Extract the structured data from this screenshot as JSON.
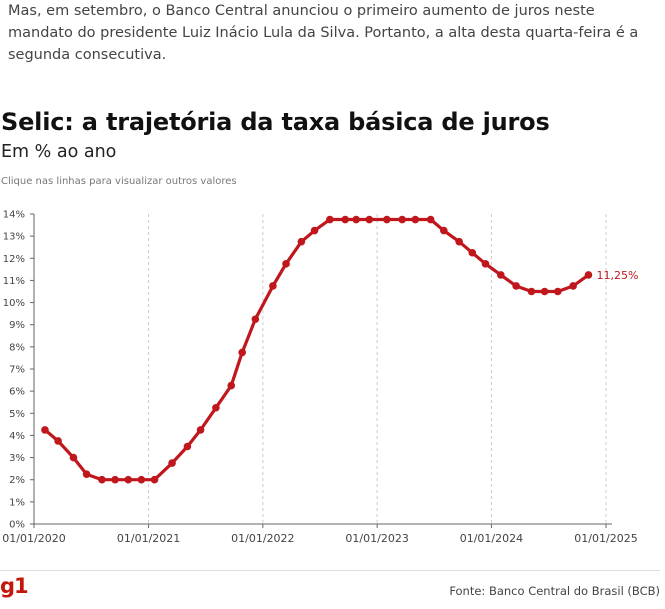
{
  "intro_text": "Mas, em setembro, o Banco Central anunciou o primeiro aumento de juros neste mandato do presidente Luiz Inácio Lula da Silva. Portanto, a alta desta quarta-feira é a segunda consecutiva.",
  "hint": "Clique nas linhas para visualizar outros valores",
  "logo_text": "g1",
  "source": "Fonte: Banco Central do Brasil (BCB)",
  "colors": {
    "series": "#c0171c",
    "axis": "#444444",
    "grid": "#cccccc"
  },
  "chart_data": {
    "type": "line",
    "title": "Selic: a trajetória da taxa básica de juros",
    "subtitle": "Em % ao ano",
    "xlabel": "",
    "ylabel": "",
    "xlim": [
      "2020-01-01",
      "2025-01-01"
    ],
    "ylim": [
      0,
      14
    ],
    "grid": {
      "vertical": true,
      "horizontal": false
    },
    "x_ticks": [
      "01/01/2020",
      "01/01/2021",
      "01/01/2022",
      "01/01/2023",
      "01/01/2024",
      "01/01/2025"
    ],
    "y_ticks": [
      "0%",
      "1%",
      "2%",
      "3%",
      "4%",
      "5%",
      "6%",
      "7%",
      "8%",
      "9%",
      "10%",
      "11%",
      "12%",
      "13%",
      "14%"
    ],
    "end_label": "11,25%",
    "series": [
      {
        "x": [
          "2020-02-05",
          "2020-03-18",
          "2020-05-06",
          "2020-06-17",
          "2020-08-05",
          "2020-09-16",
          "2020-10-28",
          "2020-12-09",
          "2021-01-20",
          "2021-03-17",
          "2021-05-05",
          "2021-06-16",
          "2021-08-04",
          "2021-09-22",
          "2021-10-27",
          "2021-12-08",
          "2022-02-02",
          "2022-03-16",
          "2022-05-04",
          "2022-06-15",
          "2022-08-03",
          "2022-09-21",
          "2022-10-26",
          "2022-12-07",
          "2023-02-01",
          "2023-03-22",
          "2023-05-03",
          "2023-06-21",
          "2023-08-02",
          "2023-09-20",
          "2023-11-01",
          "2023-12-13",
          "2024-01-31",
          "2024-03-20",
          "2024-05-08",
          "2024-06-19",
          "2024-07-31",
          "2024-09-18",
          "2024-11-06"
        ],
        "values": [
          4.25,
          3.75,
          3.0,
          2.25,
          2.0,
          2.0,
          2.0,
          2.0,
          2.0,
          2.75,
          3.5,
          4.25,
          5.25,
          6.25,
          7.75,
          9.25,
          10.75,
          11.75,
          12.75,
          13.25,
          13.75,
          13.75,
          13.75,
          13.75,
          13.75,
          13.75,
          13.75,
          13.75,
          13.25,
          12.75,
          12.25,
          11.75,
          11.25,
          10.75,
          10.5,
          10.5,
          10.5,
          10.75,
          11.25
        ]
      }
    ]
  }
}
